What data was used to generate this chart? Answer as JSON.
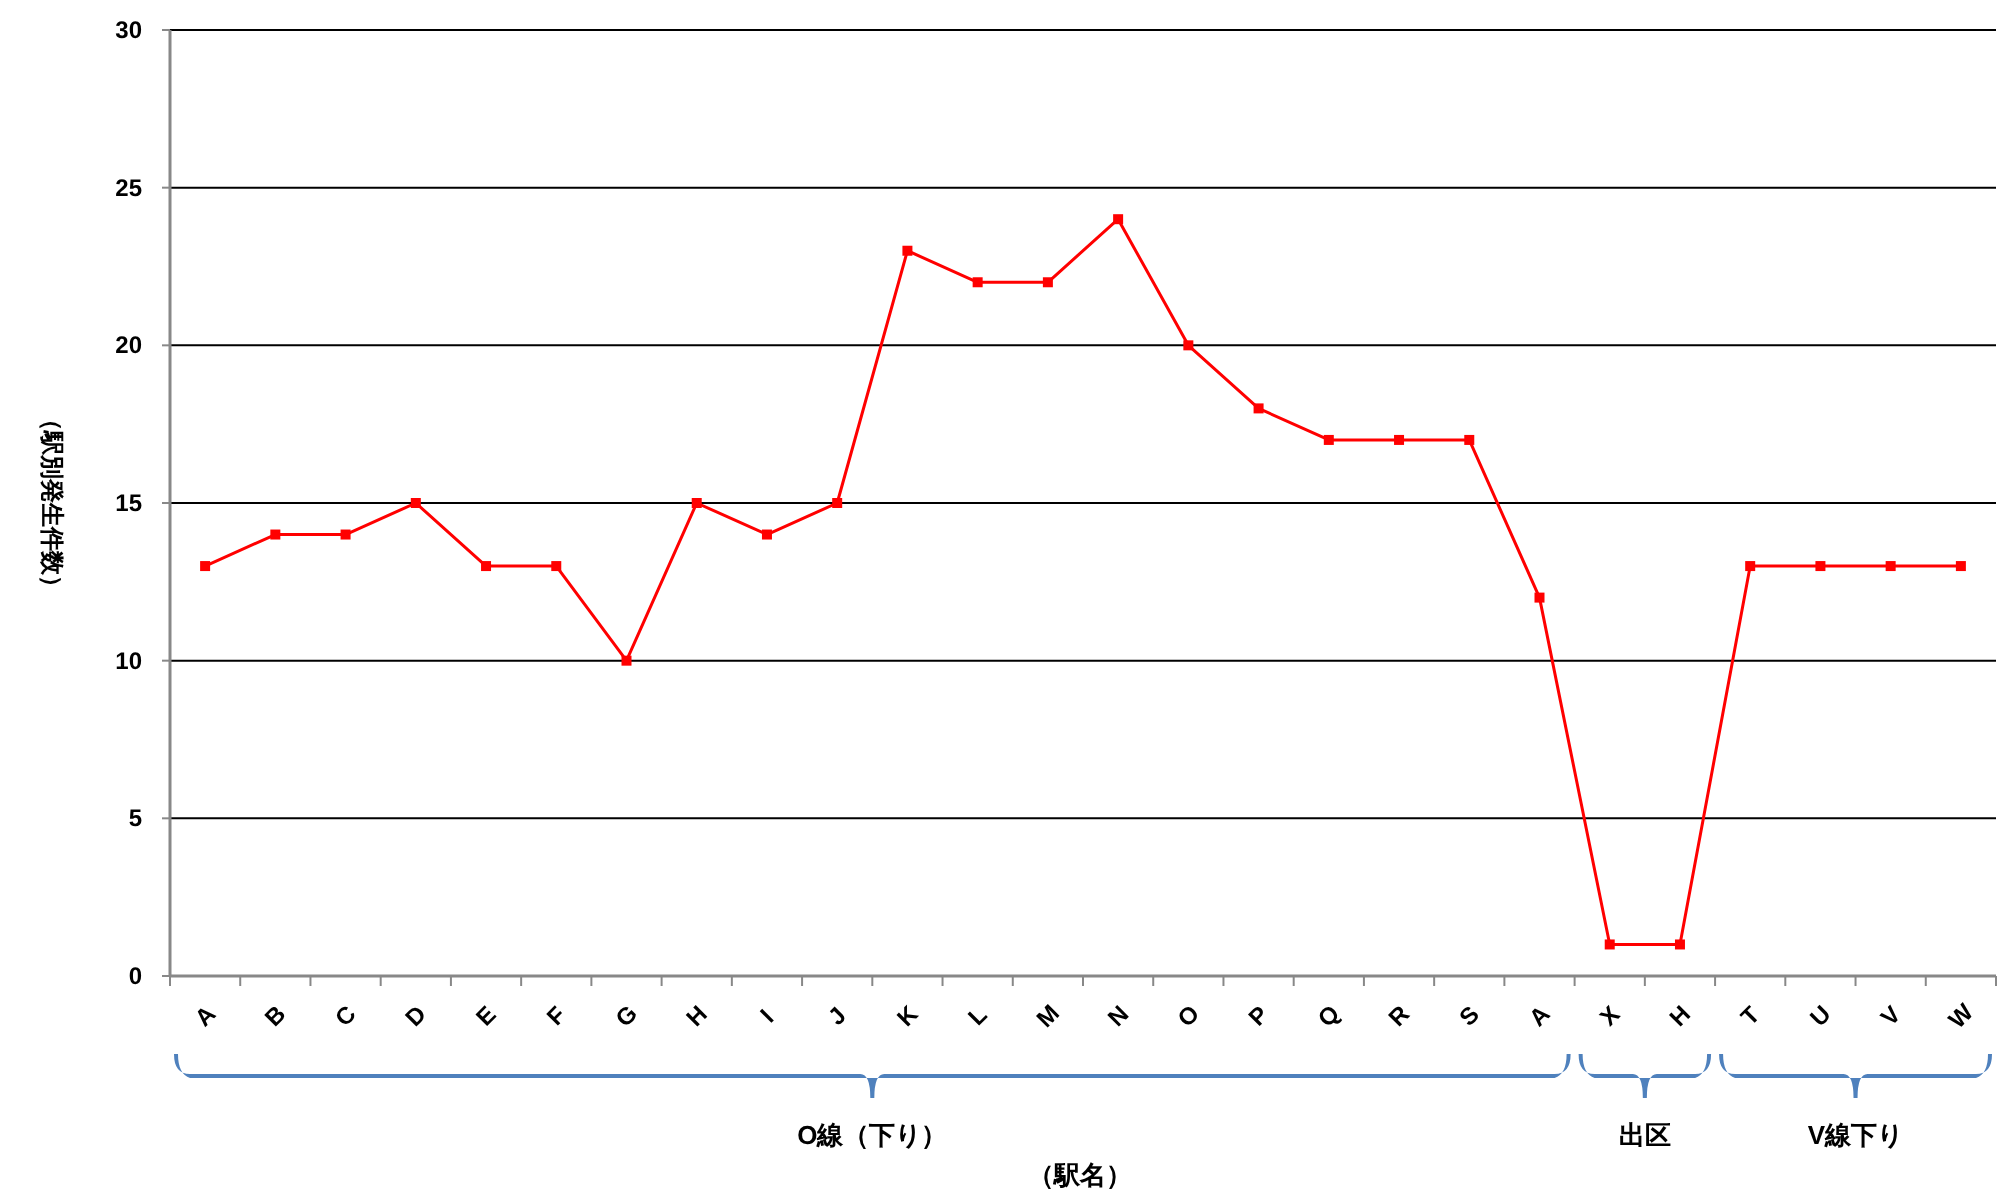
{
  "chart_data": {
    "type": "line",
    "xlabel": "（駅名）",
    "ylabel": "（駅別発生件数）",
    "categories": [
      "A",
      "B",
      "C",
      "D",
      "E",
      "F",
      "G",
      "H",
      "I",
      "J",
      "K",
      "L",
      "M",
      "N",
      "O",
      "P",
      "Q",
      "R",
      "S",
      "A",
      "X",
      "H",
      "T",
      "U",
      "V",
      "W"
    ],
    "series": [
      {
        "color": "#ff0000",
        "values": [
          13,
          14,
          14,
          15,
          13,
          13,
          10,
          15,
          14,
          15,
          23,
          22,
          22,
          24,
          20,
          18,
          17,
          17,
          17,
          12,
          1,
          1,
          13,
          13,
          13,
          13
        ]
      }
    ],
    "ylim": [
      0,
      30
    ],
    "yticks": [
      0,
      5,
      10,
      15,
      20,
      25,
      30
    ],
    "grid": "y",
    "marker": "square",
    "annotations": [
      "O線（下り）",
      "出区",
      "V線下り"
    ]
  }
}
